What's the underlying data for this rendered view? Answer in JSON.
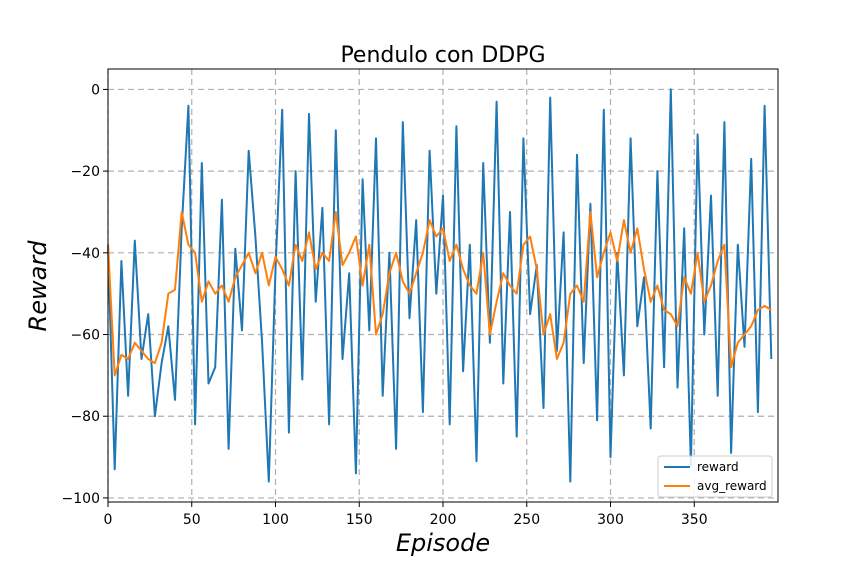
{
  "chart_data": {
    "type": "line",
    "title": "Pendulo con DDPG",
    "xlabel": "Episode",
    "ylabel": "Reward",
    "xlim": [
      0,
      400
    ],
    "ylim": [
      -101,
      5
    ],
    "xticks": [
      0,
      50,
      100,
      150,
      200,
      250,
      300,
      350
    ],
    "yticks": [
      0,
      -20,
      -40,
      -60,
      -80,
      -100
    ],
    "grid": true,
    "legend_position": "lower-right",
    "series": [
      {
        "name": "reward",
        "color": "#1f77b4",
        "x_start": 0,
        "x_step": 4,
        "values": [
          -38,
          -93,
          -42,
          -75,
          -37,
          -66,
          -55,
          -80,
          -67,
          -58,
          -76,
          -34,
          -4,
          -82,
          -18,
          -72,
          -68,
          -27,
          -88,
          -39,
          -59,
          -15,
          -36,
          -62,
          -96,
          -44,
          -5,
          -84,
          -20,
          -71,
          -6,
          -52,
          -29,
          -82,
          -10,
          -66,
          -45,
          -94,
          -22,
          -59,
          -12,
          -75,
          -40,
          -88,
          -8,
          -56,
          -32,
          -79,
          -15,
          -50,
          -26,
          -82,
          -9,
          -69,
          -38,
          -91,
          -18,
          -62,
          -3,
          -72,
          -30,
          -85,
          -12,
          -55,
          -43,
          -78,
          -2,
          -64,
          -35,
          -96,
          -16,
          -67,
          -28,
          -81,
          -5,
          -90,
          -40,
          -70,
          -12,
          -58,
          -46,
          -83,
          -20,
          -68,
          0,
          -73,
          -34,
          -92,
          -11,
          -60,
          -26,
          -75,
          -8,
          -89,
          -38,
          -63,
          -17,
          -79,
          -4,
          -66
        ],
        "note": ""
      },
      {
        "name": "avg_reward",
        "color": "#ff7f0e",
        "x_start": 0,
        "x_step": 4,
        "values": [
          -38,
          -70,
          -65,
          -66,
          -62,
          -64,
          -66,
          -67,
          -62,
          -50,
          -49,
          -30,
          -38,
          -40,
          -52,
          -47,
          -50,
          -48,
          -52,
          -46,
          -43,
          -40,
          -45,
          -40,
          -48,
          -41,
          -44,
          -48,
          -38,
          -42,
          -35,
          -44,
          -40,
          -42,
          -30,
          -43,
          -40,
          -36,
          -48,
          -38,
          -60,
          -55,
          -45,
          -40,
          -47,
          -50,
          -45,
          -40,
          -32,
          -36,
          -34,
          -42,
          -38,
          -44,
          -48,
          -50,
          -40,
          -60,
          -52,
          -45,
          -48,
          -50,
          -38,
          -36,
          -44,
          -60,
          -55,
          -66,
          -62,
          -50,
          -48,
          -52,
          -30,
          -46,
          -40,
          -35,
          -42,
          -32,
          -40,
          -34,
          -44,
          -52,
          -48,
          -54,
          -55,
          -58,
          -46,
          -50,
          -40,
          -52,
          -48,
          -42,
          -38,
          -68,
          -62,
          -60,
          -58,
          -54,
          -53,
          -54
        ]
      }
    ],
    "legend": [
      "reward",
      "avg_reward"
    ]
  }
}
